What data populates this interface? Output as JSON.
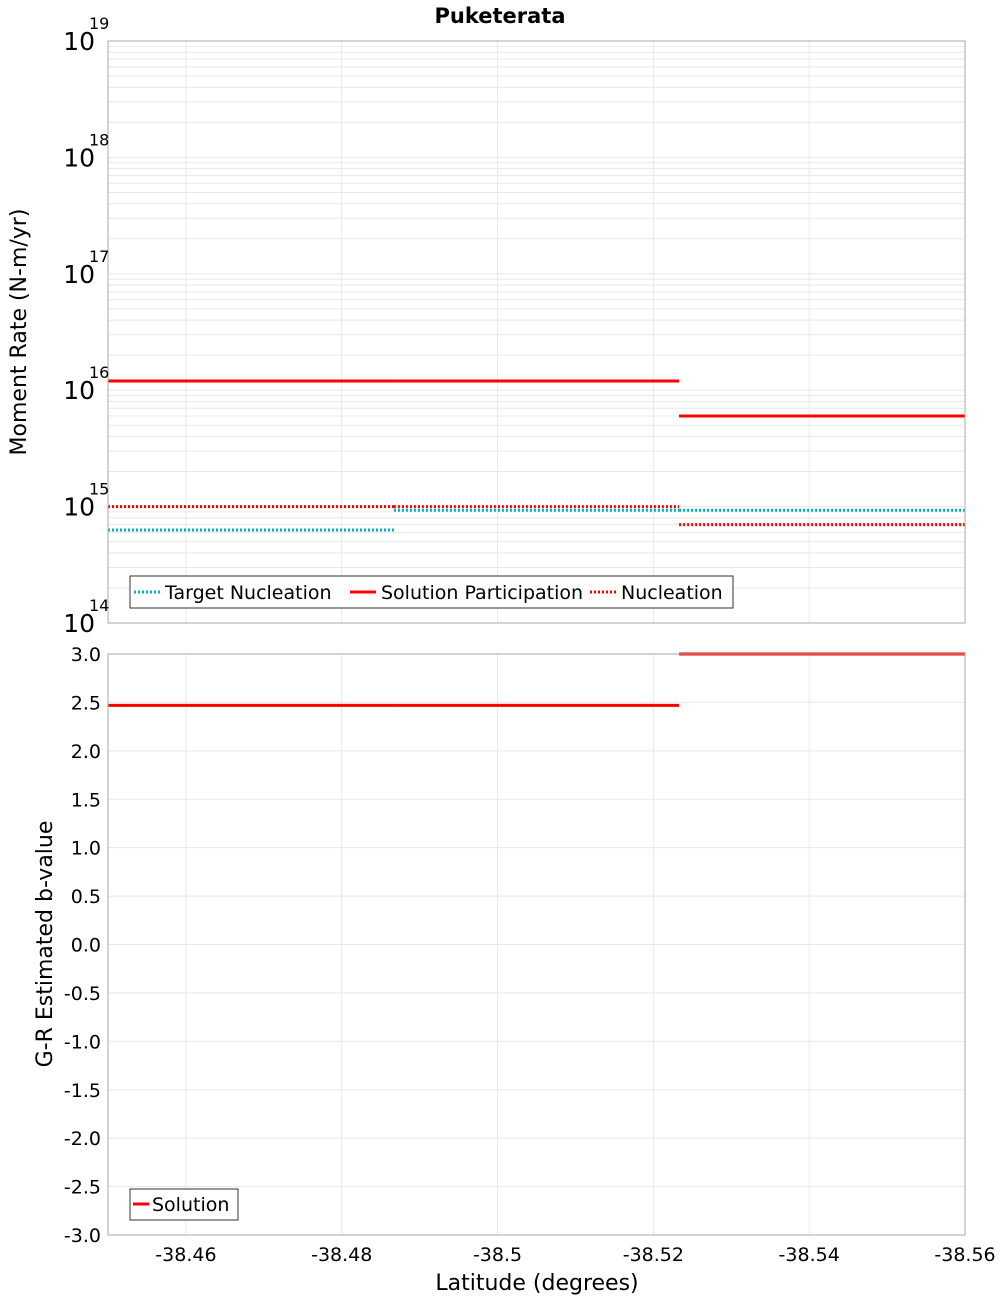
{
  "chart_data": [
    {
      "type": "line",
      "title": "Puketerata",
      "xlabel": "",
      "ylabel": "Moment Rate (N-m/yr)",
      "yscale": "log",
      "xlim": [
        -38.45,
        -38.56
      ],
      "ylim": [
        100000000000000.0,
        1e+19
      ],
      "x_reversed": true,
      "y_ticks": [
        {
          "base": "10",
          "exp": "14"
        },
        {
          "base": "10",
          "exp": "15"
        },
        {
          "base": "10",
          "exp": "16"
        },
        {
          "base": "10",
          "exp": "17"
        },
        {
          "base": "10",
          "exp": "18"
        },
        {
          "base": "10",
          "exp": "19"
        }
      ],
      "grid": true,
      "legend_position": "bottom-left",
      "legend": [
        "Target Nucleation",
        "Solution Participation",
        "Nucleation"
      ],
      "series": [
        {
          "name": "Target Nucleation",
          "color": "#00b4b4",
          "style": "dotted",
          "segments": [
            {
              "x": [
                -38.45,
                -38.4867
              ],
              "y": 630000000000000.0
            },
            {
              "x": [
                -38.4867,
                -38.5233
              ],
              "y": 930000000000000.0
            },
            {
              "x": [
                -38.5233,
                -38.56
              ],
              "y": 930000000000000.0
            }
          ]
        },
        {
          "name": "Solution Participation",
          "color": "#ff0000",
          "style": "solid",
          "segments": [
            {
              "x": [
                -38.45,
                -38.4867
              ],
              "y": 1.2e+16
            },
            {
              "x": [
                -38.4867,
                -38.5233
              ],
              "y": 1.2e+16
            },
            {
              "x": [
                -38.5233,
                -38.56
              ],
              "y": 6000000000000000.0
            }
          ]
        },
        {
          "name": "Nucleation",
          "color": "#ff0000",
          "style": "dotted",
          "segments": [
            {
              "x": [
                -38.45,
                -38.4867
              ],
              "y": 1000000000000000.0
            },
            {
              "x": [
                -38.4867,
                -38.5233
              ],
              "y": 1000000000000000.0
            },
            {
              "x": [
                -38.5233,
                -38.56
              ],
              "y": 700000000000000.0
            }
          ]
        }
      ]
    },
    {
      "type": "line",
      "title": "",
      "xlabel": "Latitude (degrees)",
      "ylabel": "G-R Estimated b-value",
      "xlim": [
        -38.45,
        -38.56
      ],
      "ylim": [
        -3.0,
        3.0
      ],
      "x_reversed": true,
      "x_ticks": [
        "-38.46",
        "-38.48",
        "-38.5",
        "-38.52",
        "-38.54",
        "-38.56"
      ],
      "x_tick_values": [
        -38.46,
        -38.48,
        -38.5,
        -38.52,
        -38.54,
        -38.56
      ],
      "y_ticks": [
        "3.0",
        "2.5",
        "2.0",
        "1.5",
        "1.0",
        "0.5",
        "0.0",
        "-0.5",
        "-1.0",
        "-1.5",
        "-2.0",
        "-2.5",
        "-3.0"
      ],
      "y_tick_values": [
        3.0,
        2.5,
        2.0,
        1.5,
        1.0,
        0.5,
        0.0,
        -0.5,
        -1.0,
        -1.5,
        -2.0,
        -2.5,
        -3.0
      ],
      "grid": true,
      "legend_position": "bottom-left",
      "legend": [
        "Solution"
      ],
      "series": [
        {
          "name": "Solution",
          "color": "#ff0000",
          "style": "solid",
          "segments": [
            {
              "x": [
                -38.45,
                -38.4867
              ],
              "y": 2.47
            },
            {
              "x": [
                -38.4867,
                -38.5233
              ],
              "y": 2.47
            },
            {
              "x": [
                -38.5233,
                -38.56
              ],
              "y": 3.0
            }
          ]
        }
      ]
    }
  ]
}
